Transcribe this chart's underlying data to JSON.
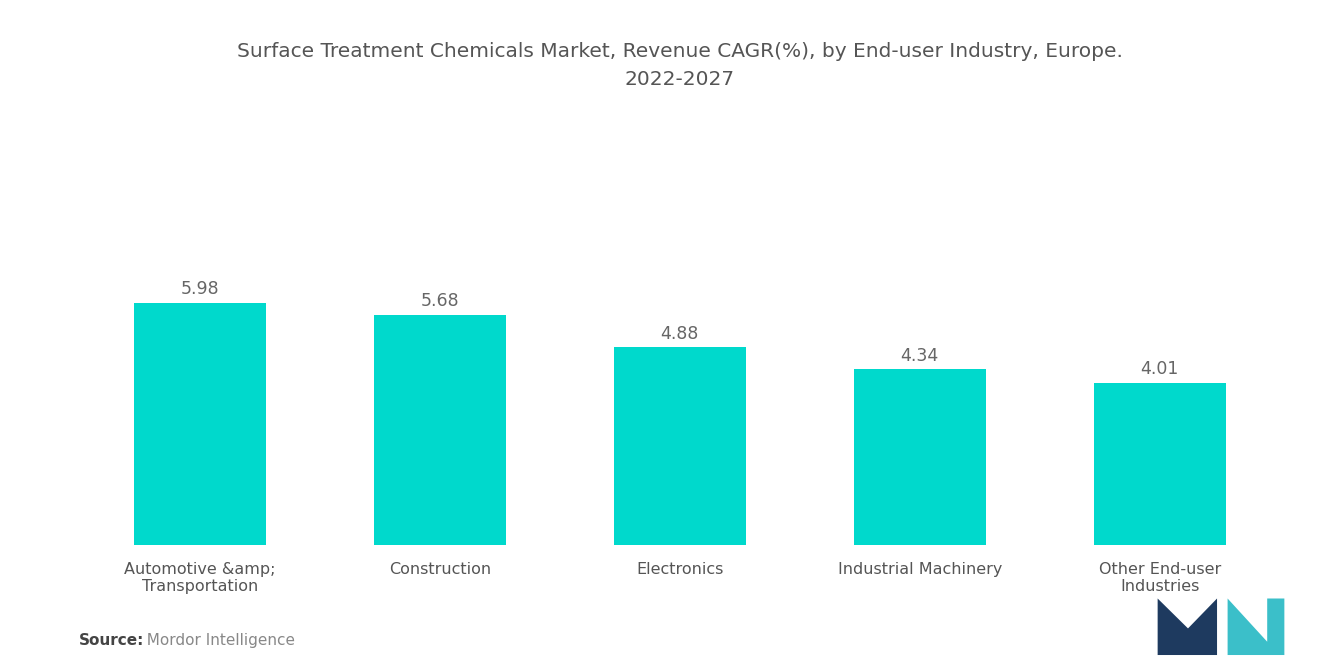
{
  "title": "Surface Treatment Chemicals Market, Revenue CAGR(%), by End-user Industry, Europe.\n2022-2027",
  "categories": [
    "Automotive &amp;\nTransportation",
    "Construction",
    "Electronics",
    "Industrial Machinery",
    "Other End-user\nIndustries"
  ],
  "values": [
    5.98,
    5.68,
    4.88,
    4.34,
    4.01
  ],
  "bar_color": "#00D9CC",
  "value_color": "#666666",
  "title_color": "#555555",
  "label_color": "#555555",
  "source_bold": "Source:",
  "source_text": "  Mordor Intelligence",
  "background_color": "#ffffff",
  "title_fontsize": 14.5,
  "label_fontsize": 11.5,
  "value_fontsize": 12.5,
  "source_fontsize": 11,
  "ylim": [
    0,
    10.5
  ],
  "bar_width": 0.55
}
